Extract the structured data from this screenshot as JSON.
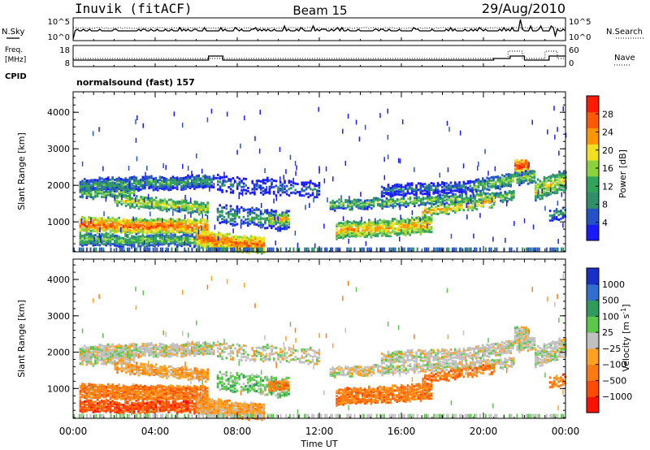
{
  "header": {
    "station": "Inuvik (fitACF)",
    "beam": "Beam 15",
    "date": "29/Aug/2010"
  },
  "top_panels": {
    "nsky_label": "N.Sky",
    "nsky_ticks": [
      "10^5",
      "10^0"
    ],
    "nsearch_label": "N.Search",
    "nsearch_ticks": [
      "10^5",
      "10^0"
    ],
    "freq_label_1": "Freq.",
    "freq_label_2": "[MHz]",
    "freq_ticks": [
      "18",
      "8"
    ],
    "nave_label": "Nave",
    "nave_ticks": [
      "60",
      "0"
    ],
    "cpid_label": "CPID",
    "cpid_text": "normalsound (fast) 157"
  },
  "chart_data": [
    {
      "type": "heatmap",
      "name": "power-panel",
      "xlabel": "Time UT",
      "ylabel": "Slant Range [km]",
      "x_ticks": [
        "00:00",
        "04:00",
        "08:00",
        "12:00",
        "16:00",
        "20:00",
        "00:00"
      ],
      "xlim_hours": [
        0,
        24
      ],
      "ylim": [
        180,
        4560
      ],
      "y_ticks": [
        1000,
        2000,
        3000,
        4000
      ],
      "colorbar": {
        "label": "Power [dB]",
        "ticks": [
          4,
          8,
          12,
          16,
          20,
          24,
          28
        ],
        "range": [
          0,
          32
        ],
        "colors": [
          "#1a1aff",
          "#2452c8",
          "#2f8f6a",
          "#2fa45a",
          "#8cd23c",
          "#f0e020",
          "#ff9600",
          "#ff5a00",
          "#ff1a00"
        ]
      }
    },
    {
      "type": "heatmap",
      "name": "velocity-panel",
      "xlabel": "Time UT",
      "ylabel": "Slant Range [km]",
      "x_ticks": [
        "00:00",
        "04:00",
        "08:00",
        "12:00",
        "16:00",
        "20:00",
        "00:00"
      ],
      "xlim_hours": [
        0,
        24
      ],
      "ylim": [
        180,
        4560
      ],
      "y_ticks": [
        1000,
        2000,
        3000,
        4000
      ],
      "colorbar": {
        "label": "Velocity [m s",
        "label_sup": "-1",
        "label_end": "]",
        "ticks": [
          "1000",
          "500",
          "100",
          "25",
          "−25",
          "−100",
          "−500",
          "−1000"
        ],
        "colors": [
          "#1830c8",
          "#2f6fd0",
          "#2f9a5a",
          "#5ac84a",
          "#c0c0c0",
          "#ffa020",
          "#ff7a10",
          "#ff4a00",
          "#ff1000"
        ]
      }
    }
  ]
}
